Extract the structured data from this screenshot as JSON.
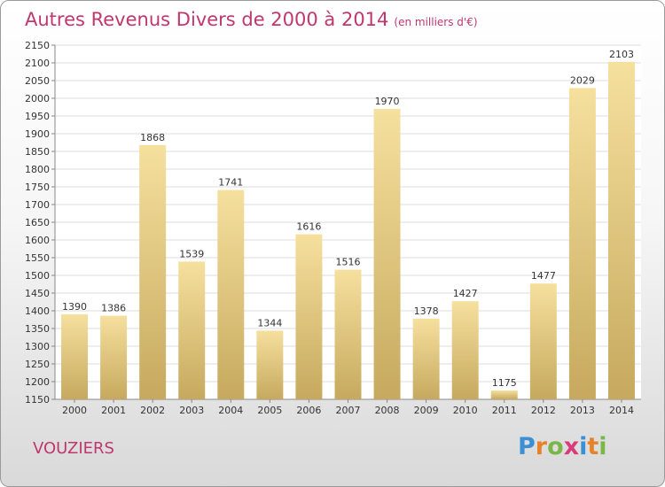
{
  "title": "Autres Revenus Divers de 2000 à 2014",
  "title_unit": "(en milliers d'€)",
  "commune": "VOUZIERS",
  "logo": {
    "text": "Proxiti",
    "letters": [
      "P",
      "r",
      "o",
      "x",
      "i",
      "t",
      "i"
    ],
    "colors": [
      "#3b8fd4",
      "#e8822a",
      "#7ab648",
      "#d93c7a",
      "#3b8fd4",
      "#e8822a",
      "#7ab648"
    ]
  },
  "colors": {
    "accent": "#c0376e",
    "bar_light": "#f6e09e",
    "bar_dark": "#c6a95e",
    "grid": "#dcdcdc",
    "text": "#333333"
  },
  "chart_data": {
    "type": "bar",
    "categories": [
      "2000",
      "2001",
      "2002",
      "2003",
      "2004",
      "2005",
      "2006",
      "2007",
      "2008",
      "2009",
      "2010",
      "2011",
      "2012",
      "2013",
      "2014"
    ],
    "values": [
      1390,
      1386,
      1868,
      1539,
      1741,
      1344,
      1616,
      1516,
      1970,
      1378,
      1427,
      1175,
      1477,
      2029,
      2103
    ],
    "ylim": [
      1150,
      2150
    ],
    "yticks": [
      1150,
      1200,
      1250,
      1300,
      1350,
      1400,
      1450,
      1500,
      1550,
      1600,
      1650,
      1700,
      1750,
      1800,
      1850,
      1900,
      1950,
      2000,
      2050,
      2100,
      2150
    ],
    "grid": true,
    "data_labels": true
  }
}
